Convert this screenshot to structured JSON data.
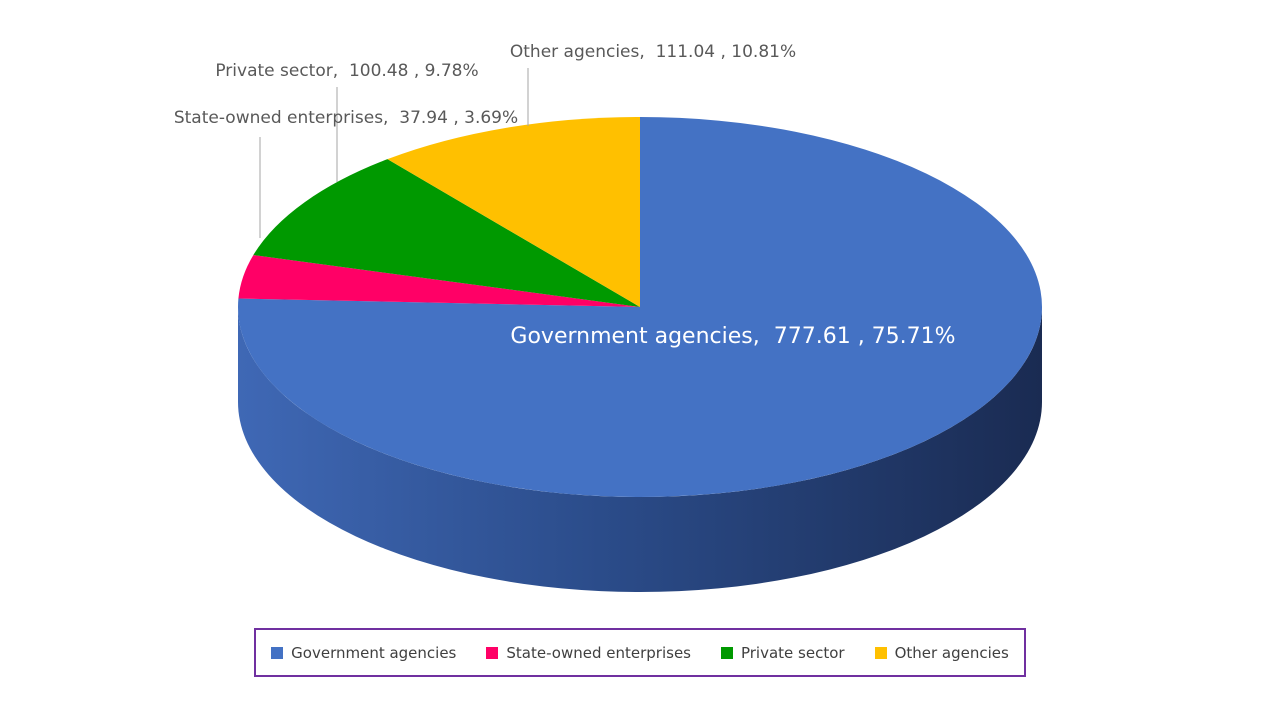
{
  "chart_data": {
    "type": "pie",
    "title": "",
    "slices": [
      {
        "label": "Government agencies",
        "value": 777.61,
        "percent": "75.71%",
        "value_text": "777.61",
        "color": "#4472c4"
      },
      {
        "label": "State-owned enterprises",
        "value": 37.94,
        "percent": "3.69%",
        "value_text": "37.94",
        "color": "#ff0066"
      },
      {
        "label": "Private sector",
        "value": 100.48,
        "percent": "9.78%",
        "value_text": "100.48",
        "color": "#009900"
      },
      {
        "label": "Other agencies",
        "value": 111.04,
        "percent": "10.81%",
        "value_text": "111.04",
        "color": "#ffc000"
      }
    ],
    "data_labels": [
      "Government agencies,  777.61 , 75.71%",
      "State-owned enterprises,  37.94 , 3.69%",
      "Private sector,  100.48 , 9.78%",
      "Other agencies,  111.04 , 10.81%"
    ],
    "legend_placement": "bottom",
    "style": "3d"
  }
}
